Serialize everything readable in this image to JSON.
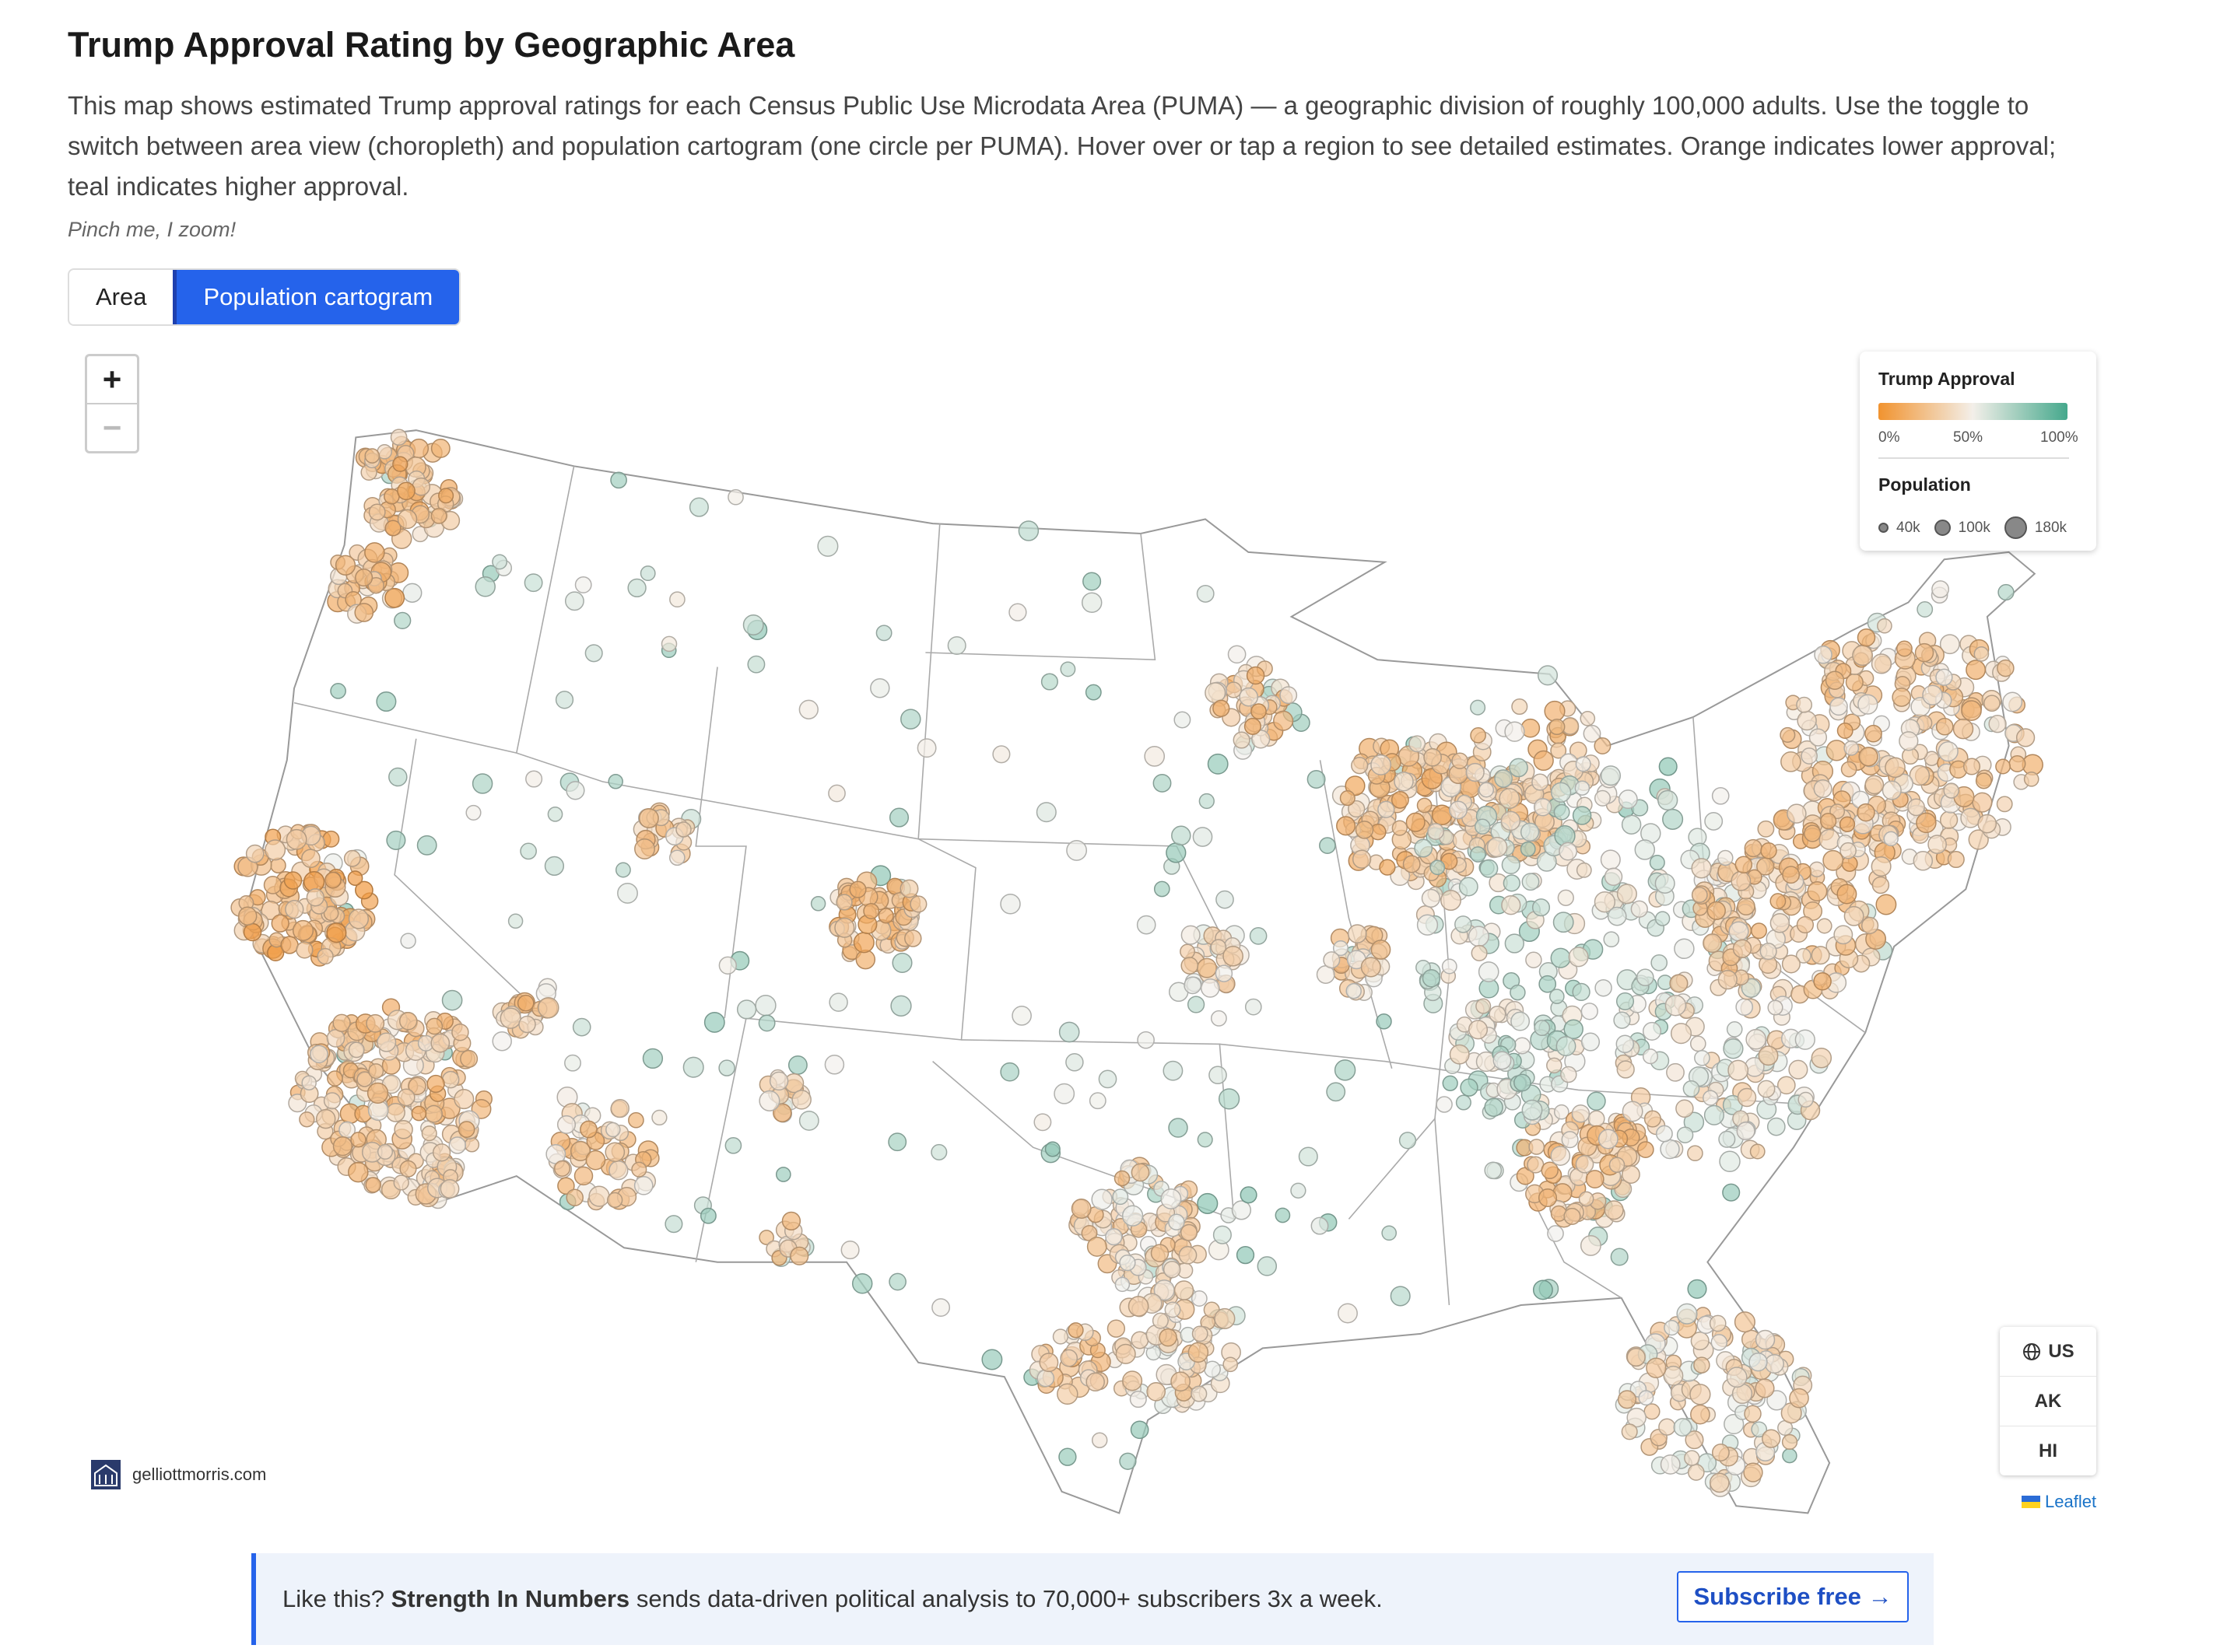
{
  "header": {
    "title": "Trump Approval Rating by Geographic Area",
    "description": "This map shows estimated Trump approval ratings for each Census Public Use Microdata Area (PUMA) — a geographic division of roughly 100,000 adults. Use the toggle to switch between area view (choropleth) and population cartogram (one circle per PUMA). Hover over or tap a region to see detailed estimates. Orange indicates lower approval; teal indicates higher approval.",
    "note": "Pinch me, I zoom!"
  },
  "toggle": {
    "options": [
      "Area",
      "Population cartogram"
    ],
    "selected_index": 1
  },
  "map": {
    "zoom_in": "+",
    "zoom_out": "−",
    "legend": {
      "approval_title": "Trump Approval",
      "approval_ticks": [
        "0%",
        "50%",
        "100%"
      ],
      "population_title": "Population",
      "population_ticks": [
        "40k",
        "100k",
        "180k"
      ]
    },
    "regions": [
      "US",
      "AK",
      "HI"
    ],
    "credit": "gelliottmorris.com",
    "attribution": "Leaflet"
  },
  "banner": {
    "lead": "Like this?",
    "brand": "Strength In Numbers",
    "text": "sends data-driven political analysis to 70,000+ subscribers 3x a week.",
    "button": "Subscribe free →"
  }
}
